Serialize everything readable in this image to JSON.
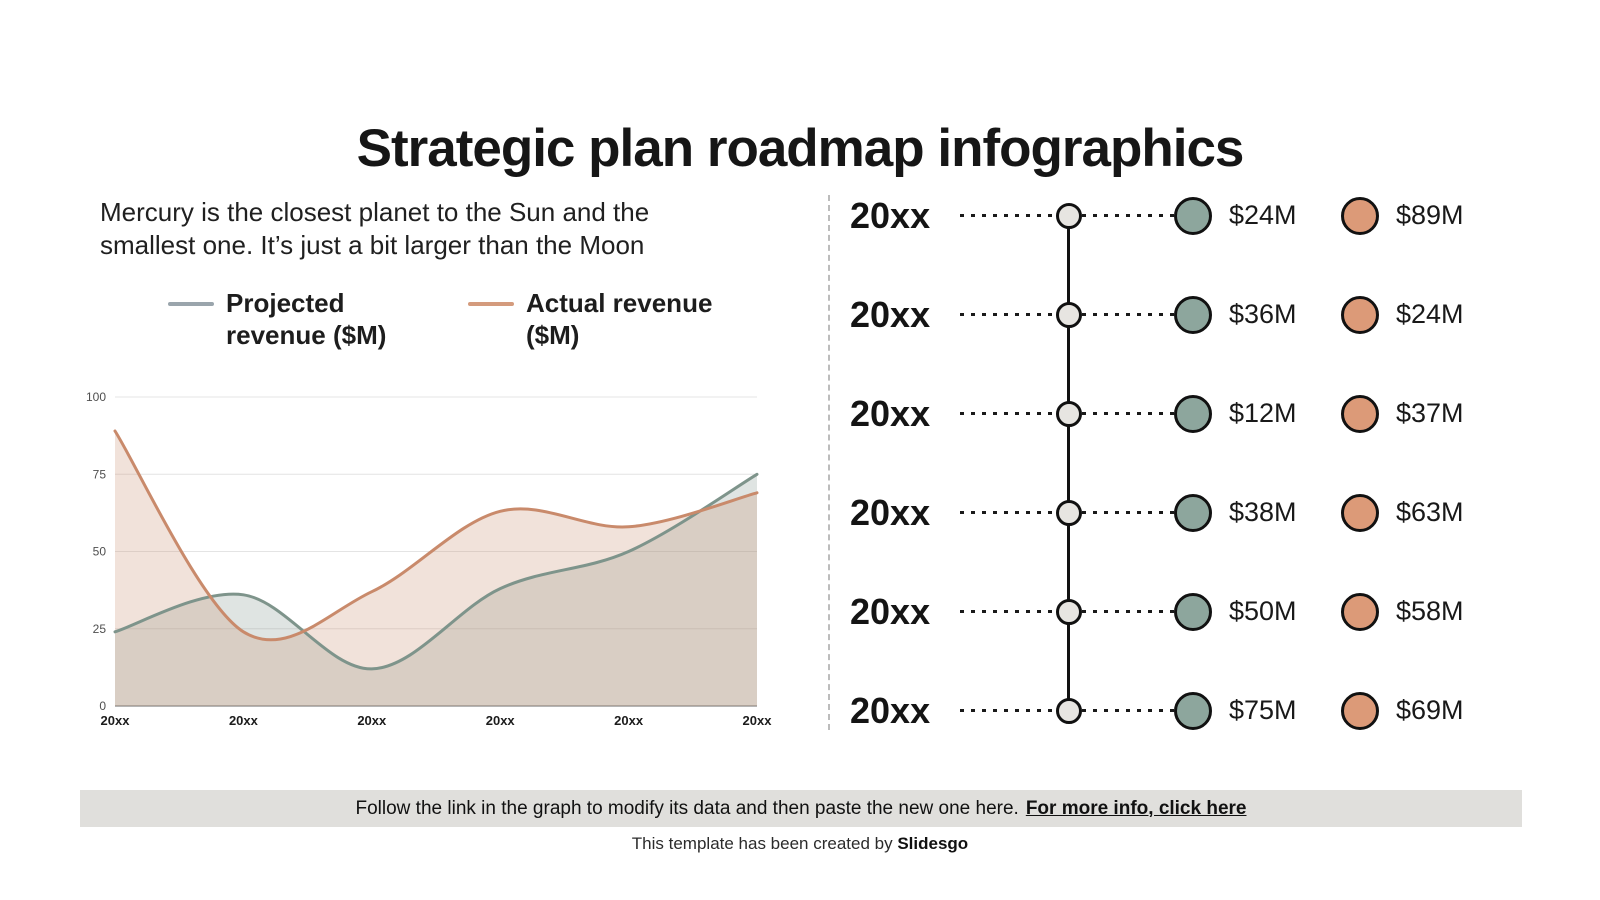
{
  "title": "Strategic plan roadmap infographics",
  "intro": "Mercury is the closest planet to the Sun and the smallest one. It’s just a bit larger than the Moon",
  "chart_data": {
    "type": "area",
    "title": "",
    "categories": [
      "20xx",
      "20xx",
      "20xx",
      "20xx",
      "20xx",
      "20xx"
    ],
    "series": [
      {
        "name": "Projected revenue ($M)",
        "color": "#7e948b",
        "values": [
          24,
          36,
          12,
          38,
          50,
          75
        ]
      },
      {
        "name": "Actual revenue ($M)",
        "color": "#c98a6b",
        "values": [
          89,
          24,
          37,
          63,
          58,
          69
        ]
      }
    ],
    "legend_swatch_colors": [
      "#9aa5ac",
      "#d49b7d"
    ],
    "xlabel": "",
    "ylabel": "",
    "ylim": [
      0,
      100
    ],
    "yticks": [
      0,
      25,
      50,
      75,
      100
    ],
    "grid": true,
    "smooth": true,
    "fill_opacity": 0.25,
    "legend_position": "top"
  },
  "timeline": {
    "colors": {
      "projected": "#8da69d",
      "actual": "#dc9a78",
      "node": "#e7e5e1"
    },
    "rows": [
      {
        "year": "20xx",
        "projected": "$24M",
        "actual": "$89M"
      },
      {
        "year": "20xx",
        "projected": "$36M",
        "actual": "$24M"
      },
      {
        "year": "20xx",
        "projected": "$12M",
        "actual": "$37M"
      },
      {
        "year": "20xx",
        "projected": "$38M",
        "actual": "$63M"
      },
      {
        "year": "20xx",
        "projected": "$50M",
        "actual": "$58M"
      },
      {
        "year": "20xx",
        "projected": "$75M",
        "actual": "$69M"
      }
    ]
  },
  "note": {
    "text": "Follow the link in the graph to modify its data and then paste the new one here.",
    "link_label": "For more info, click here"
  },
  "footer": {
    "text": "This template has been created by",
    "brand": "Slidesgo"
  }
}
